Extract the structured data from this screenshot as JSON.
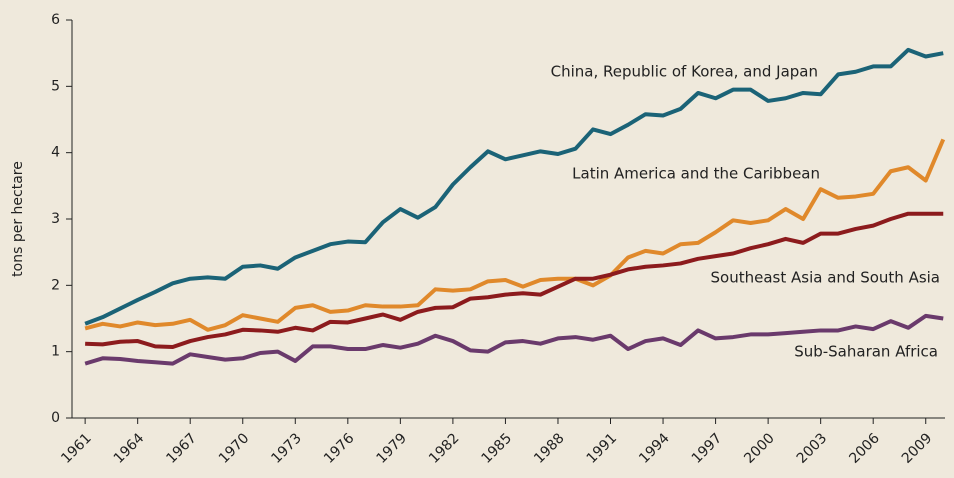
{
  "chart_data": {
    "type": "line",
    "y_label": "tons per hectare",
    "x": [
      1961,
      1962,
      1963,
      1964,
      1965,
      1966,
      1967,
      1968,
      1969,
      1970,
      1971,
      1972,
      1973,
      1974,
      1975,
      1976,
      1977,
      1978,
      1979,
      1980,
      1981,
      1982,
      1983,
      1984,
      1985,
      1986,
      1987,
      1988,
      1989,
      1990,
      1991,
      1992,
      1993,
      1994,
      1995,
      1996,
      1997,
      1998,
      1999,
      2000,
      2001,
      2002,
      2003,
      2004,
      2005,
      2006,
      2007,
      2008,
      2009,
      2010
    ],
    "series": [
      {
        "name": "China, Republic of Korea, and Japan",
        "color": "#1b6377",
        "values": [
          1.42,
          1.52,
          1.65,
          1.78,
          1.9,
          2.03,
          2.1,
          2.12,
          2.1,
          2.28,
          2.3,
          2.25,
          2.42,
          2.52,
          2.62,
          2.66,
          2.65,
          2.95,
          3.15,
          3.02,
          3.18,
          3.52,
          3.78,
          4.02,
          3.9,
          3.96,
          4.02,
          3.98,
          4.06,
          4.35,
          4.28,
          4.42,
          4.58,
          4.56,
          4.66,
          4.9,
          4.82,
          4.95,
          4.95,
          4.78,
          4.82,
          4.9,
          4.88,
          5.18,
          5.22,
          5.3,
          5.3,
          5.55,
          5.45,
          5.5
        ]
      },
      {
        "name": "Latin America and the Caribbean",
        "color": "#e0892b",
        "values": [
          1.35,
          1.42,
          1.38,
          1.44,
          1.4,
          1.42,
          1.48,
          1.33,
          1.4,
          1.55,
          1.5,
          1.45,
          1.66,
          1.7,
          1.6,
          1.62,
          1.7,
          1.68,
          1.68,
          1.7,
          1.94,
          1.92,
          1.94,
          2.06,
          2.08,
          1.98,
          2.08,
          2.1,
          2.1,
          2.0,
          2.15,
          2.42,
          2.52,
          2.48,
          2.62,
          2.64,
          2.8,
          2.98,
          2.94,
          2.98,
          3.15,
          3.0,
          3.45,
          3.32,
          3.34,
          3.38,
          3.72,
          3.78,
          3.58,
          4.2
        ]
      },
      {
        "name": "Southeast Asia and South Asia",
        "color": "#8c1b1d",
        "values": [
          1.12,
          1.11,
          1.15,
          1.16,
          1.08,
          1.07,
          1.16,
          1.22,
          1.26,
          1.33,
          1.32,
          1.3,
          1.36,
          1.32,
          1.45,
          1.44,
          1.5,
          1.56,
          1.48,
          1.6,
          1.66,
          1.67,
          1.8,
          1.82,
          1.86,
          1.88,
          1.86,
          1.98,
          2.1,
          2.1,
          2.16,
          2.24,
          2.28,
          2.3,
          2.33,
          2.4,
          2.44,
          2.48,
          2.56,
          2.62,
          2.7,
          2.64,
          2.78,
          2.78,
          2.85,
          2.9,
          3.0,
          3.08,
          3.08,
          3.08
        ]
      },
      {
        "name": "Sub-Saharan Africa",
        "color": "#6a3a6c",
        "values": [
          0.82,
          0.9,
          0.89,
          0.86,
          0.84,
          0.82,
          0.96,
          0.92,
          0.88,
          0.9,
          0.98,
          1.0,
          0.86,
          1.08,
          1.08,
          1.04,
          1.04,
          1.1,
          1.06,
          1.12,
          1.24,
          1.16,
          1.02,
          1.0,
          1.14,
          1.16,
          1.12,
          1.2,
          1.22,
          1.18,
          1.24,
          1.04,
          1.16,
          1.2,
          1.1,
          1.32,
          1.2,
          1.22,
          1.26,
          1.26,
          1.28,
          1.3,
          1.32,
          1.32,
          1.38,
          1.34,
          1.46,
          1.36,
          1.54,
          1.5
        ]
      }
    ],
    "xlim": [
      1960.25,
      2010.1
    ],
    "xticks": [
      1961,
      1964,
      1967,
      1970,
      1973,
      1976,
      1979,
      1982,
      1985,
      1988,
      1991,
      1994,
      1997,
      2000,
      2003,
      2006,
      2009
    ],
    "ylim": [
      0,
      6
    ],
    "yticks": [
      0,
      1,
      2,
      3,
      4,
      5,
      6
    ],
    "grid": false
  }
}
